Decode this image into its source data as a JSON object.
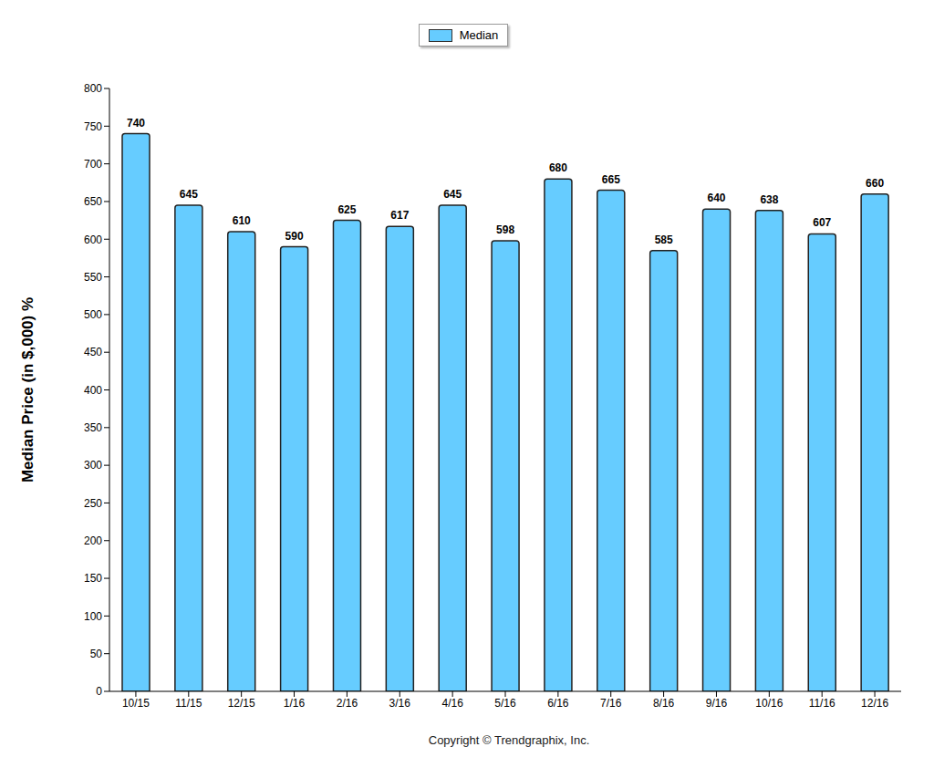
{
  "chart_data": {
    "type": "bar",
    "y_label": "Median Price (in $,000) %",
    "annotations": [
      "Copyright © Trendgraphix, Inc."
    ],
    "categories": [
      "10/15",
      "11/15",
      "12/15",
      "1/16",
      "2/16",
      "3/16",
      "4/16",
      "5/16",
      "6/16",
      "7/16",
      "8/16",
      "9/16",
      "10/16",
      "11/16",
      "12/16"
    ],
    "series": [
      {
        "name": "Median",
        "color": "#66ccff",
        "values": [
          740,
          645,
          610,
          590,
          625,
          617,
          645,
          598,
          680,
          665,
          585,
          640,
          638,
          607,
          660
        ]
      }
    ],
    "ylim": [
      0,
      800
    ],
    "yticks": [
      0,
      50,
      100,
      150,
      200,
      250,
      300,
      350,
      400,
      450,
      500,
      550,
      600,
      650,
      700,
      750,
      800
    ],
    "grid": false,
    "legend": "top",
    "data_labels": true
  }
}
